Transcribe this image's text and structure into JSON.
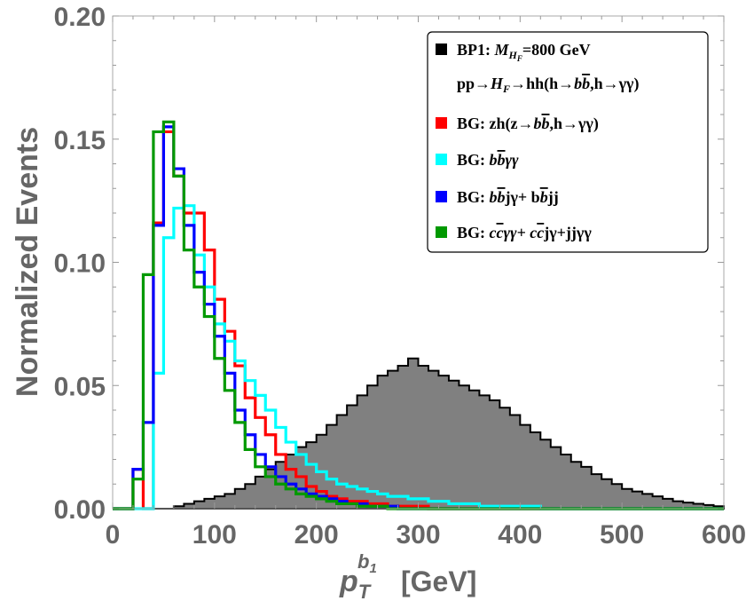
{
  "chart_data": {
    "type": "histogram",
    "title": "",
    "xlabel": "[GeV]",
    "xlabel_symbol": "p",
    "xlabel_sub": "T",
    "xlabel_sup": "b",
    "xlabel_sup_sub": "1",
    "ylabel": "Normalized Events",
    "xlim": [
      0,
      600
    ],
    "ylim": [
      0,
      0.2
    ],
    "x_ticks": [
      0,
      100,
      200,
      300,
      400,
      500,
      600
    ],
    "x_tick_labels": [
      "0",
      "100",
      "200",
      "300",
      "400",
      "500",
      "600"
    ],
    "y_ticks": [
      0,
      0.05,
      0.1,
      0.15,
      0.2
    ],
    "y_tick_labels": [
      "0.00",
      "0.05",
      "0.10",
      "0.15",
      "0.20"
    ],
    "bin_width": 10,
    "bin_start": 0,
    "series": [
      {
        "name": "BP1",
        "color": "#000000",
        "fill": "#808080",
        "filled": true,
        "values": [
          0,
          0,
          0,
          0,
          0,
          0,
          0.001,
          0.002,
          0.003,
          0.004,
          0.005,
          0.006,
          0.008,
          0.01,
          0.013,
          0.016,
          0.019,
          0.022,
          0.025,
          0.027,
          0.03,
          0.034,
          0.038,
          0.042,
          0.046,
          0.05,
          0.054,
          0.056,
          0.058,
          0.061,
          0.058,
          0.056,
          0.054,
          0.052,
          0.05,
          0.048,
          0.046,
          0.044,
          0.041,
          0.038,
          0.034,
          0.031,
          0.028,
          0.025,
          0.022,
          0.019,
          0.017,
          0.014,
          0.012,
          0.01,
          0.008,
          0.007,
          0.006,
          0.005,
          0.004,
          0.003,
          0.0025,
          0.002,
          0.0015,
          0.001
        ]
      },
      {
        "name": "BG zh",
        "color": "#ff0000",
        "filled": false,
        "values": [
          0,
          0,
          0.016,
          0,
          0.116,
          0.153,
          0.135,
          0.12,
          0.12,
          0.105,
          0.085,
          0.072,
          0.058,
          0.045,
          0.037,
          0.03,
          0.022,
          0.016,
          0.013,
          0.009,
          0.007,
          0.005,
          0.004,
          0.003,
          0.003,
          0.002,
          0.002,
          0.001,
          0.001,
          0.001,
          0.001,
          0,
          0,
          0,
          0,
          0,
          0,
          0,
          0,
          0,
          0,
          0,
          0,
          0,
          0,
          0,
          0,
          0,
          0,
          0,
          0,
          0,
          0,
          0,
          0,
          0,
          0,
          0,
          0,
          0
        ]
      },
      {
        "name": "BG bbyy",
        "color": "#00ffff",
        "filled": false,
        "values": [
          0,
          0,
          0,
          0,
          0.055,
          0.11,
          0.122,
          0.123,
          0.103,
          0.09,
          0.075,
          0.068,
          0.06,
          0.052,
          0.046,
          0.04,
          0.033,
          0.027,
          0.022,
          0.018,
          0.015,
          0.012,
          0.01,
          0.009,
          0.008,
          0.007,
          0.006,
          0.005,
          0.005,
          0.004,
          0.004,
          0.003,
          0.003,
          0.002,
          0.002,
          0.002,
          0.001,
          0.001,
          0.001,
          0.001,
          0.001,
          0.001,
          0,
          0,
          0,
          0,
          0,
          0,
          0,
          0,
          0,
          0,
          0,
          0,
          0,
          0,
          0,
          0,
          0,
          0
        ]
      },
      {
        "name": "BG bbjy",
        "color": "#0000ff",
        "filled": false,
        "values": [
          0,
          0,
          0.016,
          0.035,
          0.115,
          0.155,
          0.138,
          0.115,
          0.096,
          0.083,
          0.07,
          0.055,
          0.04,
          0.03,
          0.022,
          0.017,
          0.013,
          0.01,
          0.008,
          0.006,
          0.005,
          0.004,
          0.003,
          0.002,
          0.002,
          0.001,
          0.001,
          0.001,
          0,
          0,
          0,
          0,
          0,
          0,
          0,
          0,
          0,
          0,
          0,
          0,
          0,
          0,
          0,
          0,
          0,
          0,
          0,
          0,
          0,
          0,
          0,
          0,
          0,
          0,
          0,
          0,
          0,
          0,
          0,
          0
        ]
      },
      {
        "name": "BG ccyy",
        "color": "#009900",
        "filled": false,
        "values": [
          0,
          0,
          0.012,
          0.095,
          0.153,
          0.157,
          0.135,
          0.105,
          0.09,
          0.078,
          0.061,
          0.048,
          0.035,
          0.024,
          0.017,
          0.013,
          0.01,
          0.008,
          0.006,
          0.005,
          0.004,
          0.003,
          0.002,
          0.002,
          0.001,
          0.001,
          0.001,
          0,
          0,
          0,
          0,
          0,
          0,
          0,
          0,
          0,
          0,
          0,
          0,
          0,
          0,
          0,
          0,
          0,
          0,
          0,
          0,
          0,
          0,
          0,
          0,
          0,
          0,
          0,
          0,
          0,
          0,
          0,
          0,
          0
        ]
      }
    ],
    "legend": {
      "position": "top-right",
      "entries": [
        {
          "color": "#000000",
          "text": "BP1: M",
          "sub": "H",
          "subsub": "F",
          "rest": "=800 GeV"
        },
        {
          "color": "",
          "text": "pp→H",
          "sub": "F",
          "rest": "→hh(h→b",
          "bbar": "b",
          "rest2": ",h→γγ)"
        },
        {
          "color": "#ff0000",
          "text": "BG: zh(z→b",
          "bbar": "b",
          "rest": ",h→γγ)"
        },
        {
          "color": "#00ffff",
          "text": "BG: b",
          "bbar": "b",
          "rest": "γγ"
        },
        {
          "color": "#0000ff",
          "text": "BG: b",
          "bbar": "b",
          "rest": "jγ+ b",
          "bbar2": "b",
          "rest2": "jj"
        },
        {
          "color": "#009900",
          "text": "BG:  c",
          "bbar": "c",
          "rest": "γγ+ c",
          "bbar2": "c",
          "rest2": "jγ+jjγγ"
        }
      ]
    }
  }
}
